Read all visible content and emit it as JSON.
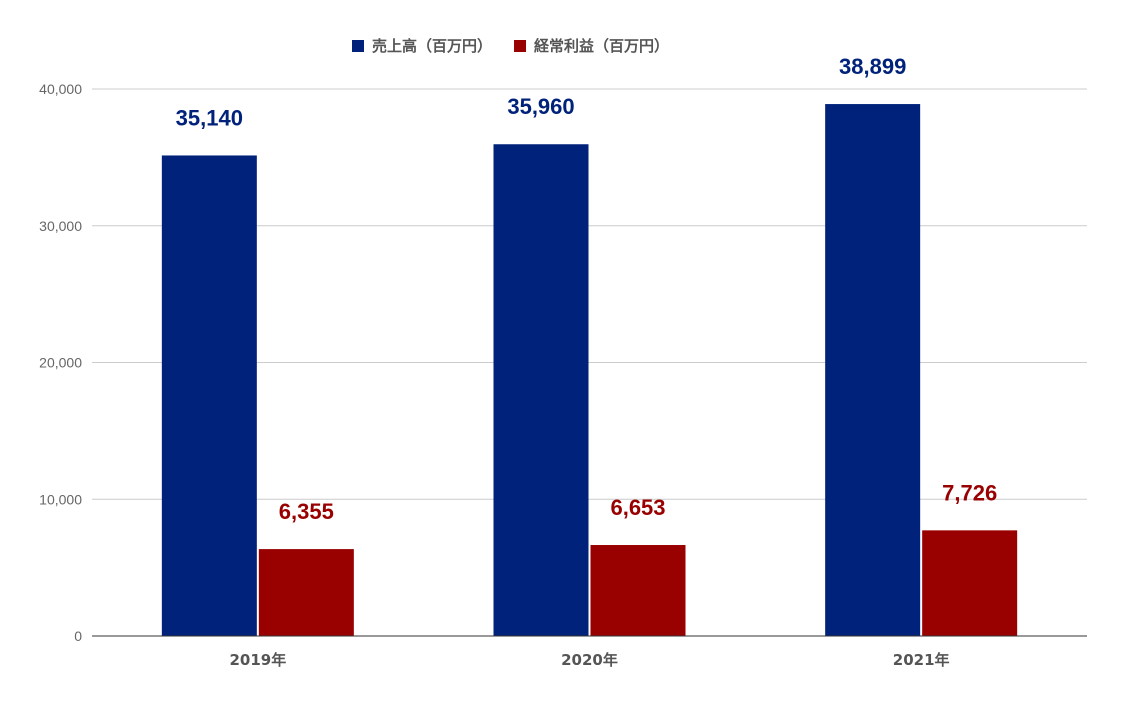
{
  "chart_data": {
    "type": "bar",
    "categories": [
      "2019年",
      "2020年",
      "2021年"
    ],
    "series": [
      {
        "name": "売上高（百万円）",
        "color": "#00227b",
        "values": [
          35140,
          35960,
          38899
        ],
        "labels": [
          "35,140",
          "35,960",
          "38,899"
        ]
      },
      {
        "name": "経常利益（百万円）",
        "color": "#990000",
        "values": [
          6355,
          6653,
          7726
        ],
        "labels": [
          "6,355",
          "6,653",
          "7,726"
        ]
      }
    ],
    "ylim": [
      0,
      40000
    ],
    "yticks": [
      0,
      10000,
      20000,
      30000,
      40000
    ],
    "ytick_labels": [
      "0",
      "10,000",
      "20,000",
      "30,000",
      "40,000"
    ],
    "grid": true,
    "legend_position": "top-center",
    "title": "",
    "xlabel": "",
    "ylabel": ""
  }
}
